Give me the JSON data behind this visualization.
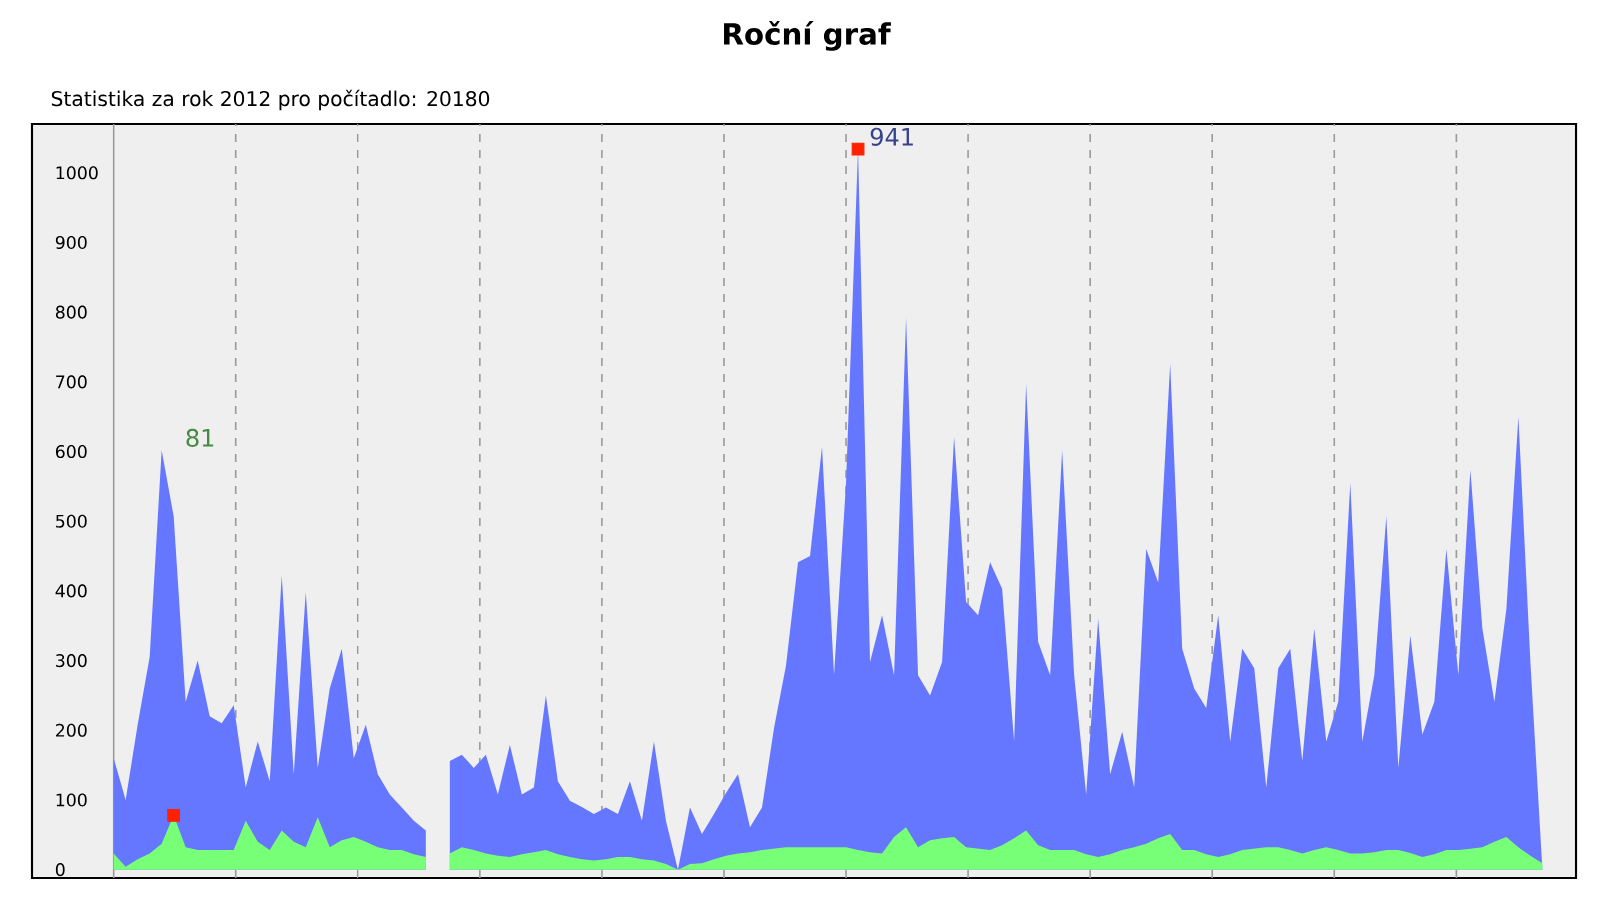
{
  "chart_data": {
    "type": "area",
    "title": "Roční graf",
    "subtitle": "Statistika za rok 2012 pro počítadlo: 20180",
    "categories": [
      null,
      null,
      null,
      null,
      null,
      null,
      null,
      null,
      null,
      null,
      null,
      null,
      null,
      null,
      null,
      null,
      null,
      null,
      null,
      null,
      null,
      null,
      null,
      null,
      null,
      null,
      null,
      null,
      null,
      null,
      null,
      null,
      null,
      null,
      null,
      null,
      null,
      null,
      null,
      null,
      null,
      null,
      null,
      null,
      null,
      null,
      null,
      null,
      null,
      null,
      null,
      null,
      null,
      null,
      null,
      null,
      null,
      null,
      null,
      null,
      null,
      null,
      null,
      null,
      null,
      null,
      null,
      null,
      null,
      null,
      null,
      null,
      null,
      null,
      null,
      null,
      null,
      null,
      null,
      null,
      null,
      null,
      null,
      null,
      null,
      null,
      null,
      null,
      null,
      null,
      null,
      null,
      null,
      null,
      null,
      null,
      null,
      null,
      null,
      null,
      null,
      null,
      null,
      null,
      null,
      null,
      null,
      null,
      null,
      null,
      null,
      null,
      null,
      null,
      null,
      null,
      null,
      null,
      null,
      null
    ],
    "ylim": [
      -12,
      1070
    ],
    "yticks": [
      0,
      100,
      200,
      300,
      400,
      500,
      600,
      700,
      800,
      900,
      1000
    ],
    "tick_labels": "y",
    "series": [
      {
        "color": "#6677ff",
        "values": [
          160,
          100,
          208,
          305,
          602,
          507,
          241,
          300,
          220,
          210,
          236,
          118,
          184,
          127,
          422,
          137,
          398,
          146,
          260,
          317,
          160,
          208,
          137,
          108,
          89,
          70,
          56,
          null,
          156,
          165,
          146,
          165,
          108,
          179,
          108,
          118,
          250,
          127,
          99,
          90,
          80,
          89,
          80,
          127,
          70,
          184,
          70,
          0,
          89,
          51,
          80,
          110,
          137,
          61,
          89,
          203,
          293,
          441,
          450,
          607,
          279,
          555,
          1034,
          298,
          365,
          279,
          792,
          279,
          250,
          298,
          621,
          384,
          365,
          441,
          403,
          184,
          697,
          327,
          279,
          602,
          279,
          108,
          360,
          137,
          198,
          118,
          460,
          412,
          726,
          317,
          260,
          232,
          365,
          184,
          317,
          289,
          118,
          289,
          317,
          156,
          346,
          184,
          241,
          555,
          184,
          279,
          507,
          146,
          336,
          194,
          241,
          460,
          279,
          574,
          346,
          241,
          374,
          650,
          298,
          0
        ]
      },
      {
        "color": "#77ff77",
        "values": [
          23,
          4,
          15,
          23,
          37,
          78,
          32,
          28,
          28,
          28,
          28,
          70,
          40,
          28,
          56,
          40,
          32,
          75,
          32,
          42,
          47,
          40,
          32,
          28,
          28,
          22,
          18,
          null,
          23,
          32,
          28,
          23,
          20,
          18,
          22,
          25,
          28,
          22,
          18,
          15,
          13,
          15,
          18,
          18,
          15,
          13,
          8,
          0,
          8,
          9,
          15,
          20,
          23,
          25,
          28,
          30,
          32,
          32,
          32,
          32,
          32,
          32,
          28,
          25,
          23,
          47,
          61,
          32,
          42,
          45,
          47,
          32,
          30,
          28,
          35,
          45,
          56,
          35,
          28,
          28,
          28,
          22,
          18,
          22,
          28,
          32,
          37,
          45,
          51,
          28,
          28,
          22,
          18,
          22,
          28,
          30,
          32,
          32,
          28,
          23,
          28,
          32,
          28,
          23,
          23,
          25,
          28,
          28,
          24,
          18,
          22,
          28,
          28,
          30,
          32,
          40,
          47,
          32,
          20,
          9
        ]
      },
      {
        "type": "scatter",
        "color": "#ff2200",
        "marker": "square",
        "values": [
          null,
          null,
          null,
          null,
          null,
          78,
          null,
          null,
          null,
          null,
          null,
          null,
          null,
          null,
          null,
          null,
          null,
          null,
          null,
          null,
          null,
          null,
          null,
          null,
          null,
          null,
          null,
          null,
          null,
          null,
          null,
          null,
          null,
          null,
          null,
          null,
          null,
          null,
          null,
          null,
          null,
          null,
          null,
          null,
          null,
          null,
          null,
          null,
          null,
          null,
          null,
          null,
          null,
          null,
          null,
          null,
          null,
          null,
          null,
          null,
          null,
          null,
          1034,
          null,
          null,
          null,
          null,
          null,
          null,
          null,
          null,
          null,
          null,
          null,
          null,
          null,
          null,
          null,
          null,
          null,
          null,
          null,
          null,
          null,
          null,
          null,
          null,
          null,
          null,
          null,
          null,
          null,
          null,
          null,
          null,
          null,
          null,
          null,
          null,
          null,
          null,
          null,
          null,
          null,
          null,
          null,
          null,
          null,
          null,
          null,
          null,
          null,
          null,
          null,
          null,
          null,
          null,
          null,
          null,
          null
        ]
      }
    ],
    "annotations": [
      "81",
      "941"
    ]
  }
}
